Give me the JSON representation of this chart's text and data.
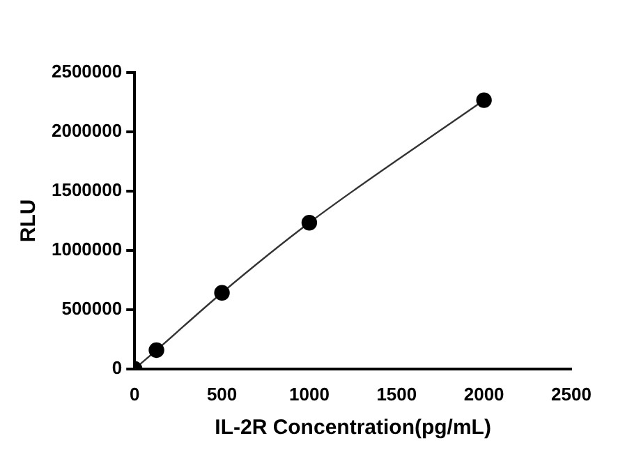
{
  "chart_data": {
    "type": "line",
    "xlabel": "IL-2R Concentration(pg/mL)",
    "ylabel": "RLU",
    "series": [
      {
        "color": "#000000",
        "x": [
          0,
          125,
          500,
          1000,
          2000
        ],
        "values": [
          0,
          158000,
          642000,
          1233000,
          2267000
        ]
      }
    ],
    "xlim": [
      0,
      2500
    ],
    "xticks": [
      0,
      500,
      1000,
      1500,
      2000,
      2500
    ],
    "ylim": [
      0,
      2500000
    ],
    "yticks": [
      0,
      500000,
      1000000,
      1500000,
      2000000,
      2500000
    ],
    "grid": false,
    "legend": false,
    "marker": "circle",
    "line_style": "solid"
  }
}
